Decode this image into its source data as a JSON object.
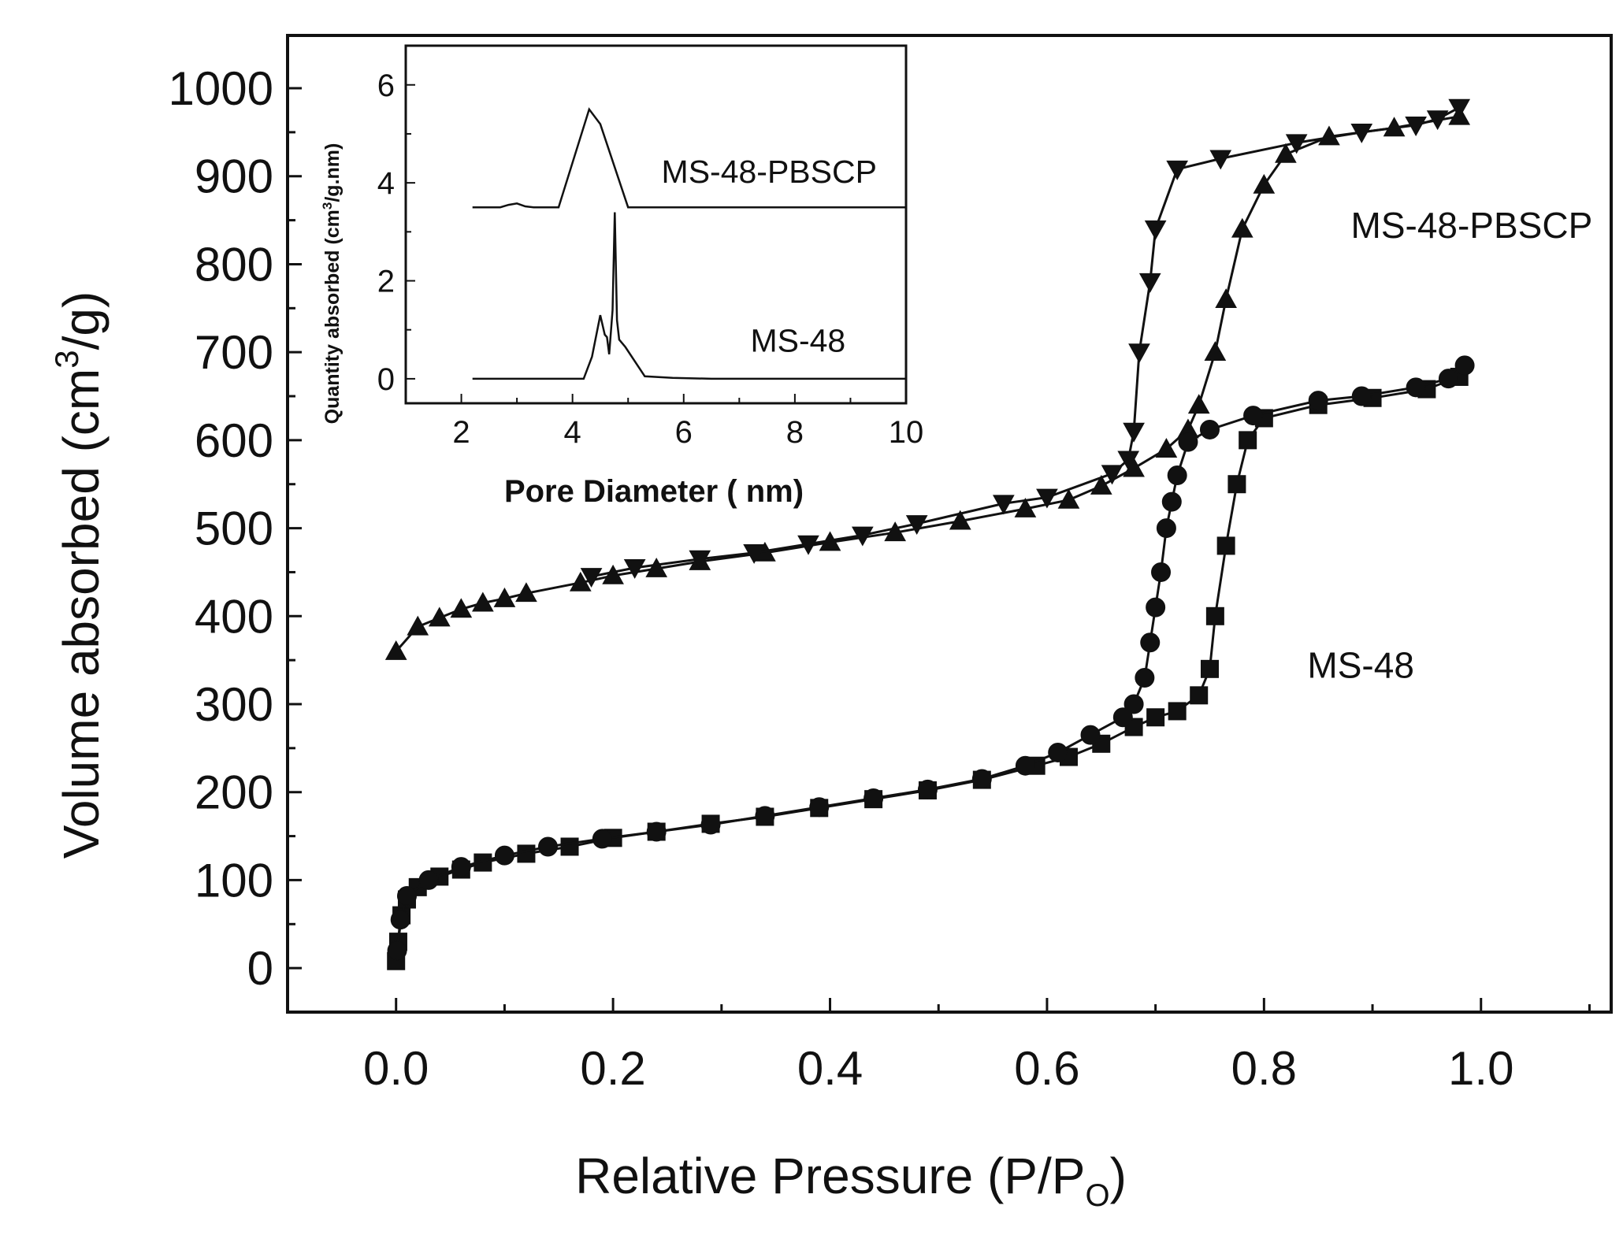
{
  "chart_data": [
    {
      "type": "line",
      "role": "main",
      "xlabel": "Relative Pressure (P/P",
      "xlabel_sub": "O",
      "xlabel_end": ")",
      "ylabel": "Volume absorbed  (cm",
      "ylabel_sup": "3",
      "ylabel_end": "/g)",
      "xlim": [
        -0.1,
        1.12
      ],
      "ylim": [
        -50,
        1060
      ],
      "xticks": [
        "0.0",
        "0.2",
        "0.4",
        "0.6",
        "0.8",
        "1.0"
      ],
      "xtick_values": [
        0,
        0.2,
        0.4,
        0.6,
        0.8,
        1.0
      ],
      "yticks": [
        "0",
        "100",
        "200",
        "300",
        "400",
        "500",
        "600",
        "700",
        "800",
        "900",
        "1000"
      ],
      "ytick_values": [
        0,
        100,
        200,
        300,
        400,
        500,
        600,
        700,
        800,
        900,
        1000
      ],
      "series_labels": [
        {
          "text": "MS-48-PBSCP",
          "x": 0.88,
          "y": 830
        },
        {
          "text": "MS-48",
          "x": 0.84,
          "y": 330
        }
      ],
      "series": [
        {
          "name": "MS-48-PBSCP adsorption",
          "marker": "triangle-up",
          "points": [
            [
              0.0,
              360
            ],
            [
              0.02,
              388
            ],
            [
              0.04,
              398
            ],
            [
              0.06,
              408
            ],
            [
              0.08,
              415
            ],
            [
              0.1,
              420
            ],
            [
              0.12,
              426
            ],
            [
              0.17,
              438
            ],
            [
              0.2,
              446
            ],
            [
              0.24,
              454
            ],
            [
              0.28,
              462
            ],
            [
              0.34,
              472
            ],
            [
              0.4,
              484
            ],
            [
              0.46,
              495
            ],
            [
              0.52,
              508
            ],
            [
              0.58,
              522
            ],
            [
              0.62,
              532
            ],
            [
              0.65,
              548
            ],
            [
              0.68,
              568
            ],
            [
              0.71,
              590
            ],
            [
              0.73,
              612
            ],
            [
              0.74,
              640
            ],
            [
              0.755,
              700
            ],
            [
              0.765,
              760
            ],
            [
              0.78,
              840
            ],
            [
              0.8,
              890
            ],
            [
              0.82,
              925
            ],
            [
              0.86,
              945
            ],
            [
              0.92,
              955
            ],
            [
              0.98,
              968
            ]
          ]
        },
        {
          "name": "MS-48-PBSCP desorption",
          "marker": "triangle-down",
          "points": [
            [
              0.98,
              978
            ],
            [
              0.96,
              965
            ],
            [
              0.94,
              958
            ],
            [
              0.89,
              950
            ],
            [
              0.83,
              938
            ],
            [
              0.76,
              920
            ],
            [
              0.72,
              908
            ],
            [
              0.7,
              840
            ],
            [
              0.695,
              780
            ],
            [
              0.685,
              700
            ],
            [
              0.68,
              610
            ],
            [
              0.675,
              578
            ],
            [
              0.66,
              562
            ],
            [
              0.6,
              535
            ],
            [
              0.56,
              528
            ],
            [
              0.48,
              505
            ],
            [
              0.43,
              492
            ],
            [
              0.38,
              482
            ],
            [
              0.33,
              472
            ],
            [
              0.28,
              465
            ],
            [
              0.22,
              455
            ],
            [
              0.18,
              445
            ]
          ]
        },
        {
          "name": "MS-48 adsorption",
          "marker": "square",
          "points": [
            [
              0.0,
              8
            ],
            [
              0.002,
              30
            ],
            [
              0.005,
              60
            ],
            [
              0.01,
              78
            ],
            [
              0.02,
              92
            ],
            [
              0.04,
              104
            ],
            [
              0.06,
              112
            ],
            [
              0.08,
              120
            ],
            [
              0.12,
              130
            ],
            [
              0.16,
              138
            ],
            [
              0.2,
              148
            ],
            [
              0.24,
              155
            ],
            [
              0.29,
              164
            ],
            [
              0.34,
              172
            ],
            [
              0.39,
              182
            ],
            [
              0.44,
              192
            ],
            [
              0.49,
              202
            ],
            [
              0.54,
              214
            ],
            [
              0.59,
              230
            ],
            [
              0.62,
              240
            ],
            [
              0.65,
              255
            ],
            [
              0.68,
              274
            ],
            [
              0.7,
              285
            ],
            [
              0.72,
              292
            ],
            [
              0.74,
              310
            ],
            [
              0.75,
              340
            ],
            [
              0.755,
              400
            ],
            [
              0.765,
              480
            ],
            [
              0.775,
              550
            ],
            [
              0.785,
              600
            ],
            [
              0.8,
              625
            ],
            [
              0.85,
              640
            ],
            [
              0.9,
              648
            ],
            [
              0.95,
              658
            ],
            [
              0.98,
              672
            ]
          ]
        },
        {
          "name": "MS-48 desorption",
          "marker": "circle",
          "points": [
            [
              0.985,
              685
            ],
            [
              0.97,
              670
            ],
            [
              0.94,
              660
            ],
            [
              0.89,
              650
            ],
            [
              0.85,
              645
            ],
            [
              0.79,
              628
            ],
            [
              0.75,
              612
            ],
            [
              0.73,
              598
            ],
            [
              0.72,
              560
            ],
            [
              0.715,
              530
            ],
            [
              0.71,
              500
            ],
            [
              0.705,
              450
            ],
            [
              0.7,
              410
            ],
            [
              0.695,
              370
            ],
            [
              0.69,
              330
            ],
            [
              0.68,
              300
            ],
            [
              0.67,
              285
            ],
            [
              0.64,
              265
            ],
            [
              0.61,
              245
            ],
            [
              0.58,
              230
            ],
            [
              0.54,
              215
            ],
            [
              0.49,
              203
            ],
            [
              0.44,
              193
            ],
            [
              0.39,
              183
            ],
            [
              0.34,
              173
            ],
            [
              0.29,
              163
            ],
            [
              0.24,
              155
            ],
            [
              0.19,
              147
            ],
            [
              0.14,
              138
            ],
            [
              0.1,
              128
            ],
            [
              0.06,
              115
            ],
            [
              0.03,
              100
            ],
            [
              0.01,
              82
            ],
            [
              0.004,
              55
            ],
            [
              0.001,
              20
            ]
          ]
        }
      ]
    },
    {
      "type": "line",
      "role": "inset",
      "xlabel": "Pore Diameter ( nm)",
      "ylabel": "Quantity absorbed (cm",
      "ylabel_sup": "3",
      "ylabel_end": "/g.nm)",
      "xlim": [
        1,
        10
      ],
      "ylim": [
        -0.5,
        6.8
      ],
      "xticks": [
        "2",
        "4",
        "6",
        "8",
        "10"
      ],
      "xtick_values": [
        2,
        4,
        6,
        8,
        10
      ],
      "yticks": [
        "0",
        "2",
        "4",
        "6"
      ],
      "ytick_values": [
        0,
        2,
        4,
        6
      ],
      "series_labels": [
        {
          "text": "MS-48-PBSCP",
          "x": 5.6,
          "y": 4.0
        },
        {
          "text": "MS-48",
          "x": 7.2,
          "y": 0.55
        }
      ],
      "series": [
        {
          "name": "MS-48-PBSCP",
          "points": [
            [
              2.2,
              3.5
            ],
            [
              2.7,
              3.5
            ],
            [
              2.85,
              3.55
            ],
            [
              3.0,
              3.58
            ],
            [
              3.15,
              3.52
            ],
            [
              3.3,
              3.5
            ],
            [
              3.75,
              3.5
            ],
            [
              4.3,
              5.5
            ],
            [
              4.5,
              5.2
            ],
            [
              5.0,
              3.5
            ],
            [
              6.0,
              3.5
            ],
            [
              8.0,
              3.5
            ],
            [
              10.0,
              3.5
            ]
          ]
        },
        {
          "name": "MS-48",
          "points": [
            [
              2.2,
              0.0
            ],
            [
              4.2,
              0.0
            ],
            [
              4.35,
              0.45
            ],
            [
              4.5,
              1.3
            ],
            [
              4.58,
              0.9
            ],
            [
              4.62,
              0.85
            ],
            [
              4.66,
              0.5
            ],
            [
              4.72,
              1.4
            ],
            [
              4.76,
              3.4
            ],
            [
              4.8,
              1.2
            ],
            [
              4.84,
              0.8
            ],
            [
              4.95,
              0.65
            ],
            [
              5.3,
              0.05
            ],
            [
              5.8,
              0.02
            ],
            [
              6.5,
              0.0
            ],
            [
              8.0,
              0.0
            ],
            [
              10.0,
              0.0
            ]
          ]
        }
      ]
    }
  ]
}
